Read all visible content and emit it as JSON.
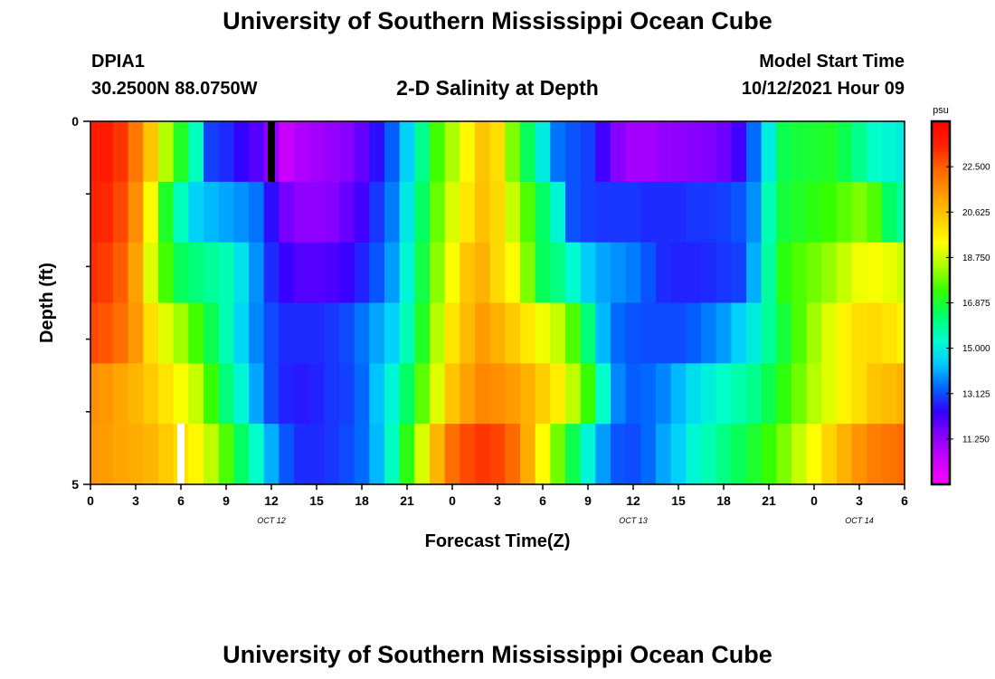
{
  "header": {
    "title": "University of Southern Mississippi Ocean Cube",
    "station_id": "DPIA1",
    "station_coords": "30.2500N  88.0750W",
    "subtitle": "2-D Salinity at Depth",
    "model_start_label": "Model Start Time",
    "model_start_value": "10/12/2021 Hour 09"
  },
  "footer": {
    "title": "University of Southern Mississippi Ocean Cube"
  },
  "chart_data": {
    "type": "heatmap",
    "title": "2-D Salinity at Depth",
    "xlabel": "Forecast Time(Z)",
    "ylabel": "Depth (ft)",
    "x_tick_labels": [
      "0",
      "3",
      "6",
      "9",
      "12",
      "15",
      "18",
      "21",
      "0",
      "3",
      "6",
      "9",
      "12",
      "15",
      "18",
      "21",
      "0",
      "3",
      "6"
    ],
    "x_range_hours": [
      0,
      54
    ],
    "date_labels": [
      {
        "text": "OCT 12",
        "hour": 12
      },
      {
        "text": "OCT 13",
        "hour": 36
      },
      {
        "text": "OCT 14",
        "hour": 51
      }
    ],
    "y_range_ft": [
      0,
      5
    ],
    "y_tick_labels": [
      {
        "depth": 0,
        "text": "0"
      },
      {
        "depth": 5,
        "text": "5"
      }
    ],
    "y_minor_ticks_ft": [
      1,
      2,
      3,
      4
    ],
    "depth_layers_ft": [
      0,
      1,
      2,
      3,
      4,
      5
    ],
    "time_step_hours": 1,
    "colorbar": {
      "unit": "psu",
      "min": 9.375,
      "max": 24.375,
      "tick_values": [
        11.25,
        13.125,
        15.0,
        16.875,
        18.75,
        20.625,
        22.5
      ],
      "tick_labels": [
        "11.250",
        "13.125",
        "15.000",
        "16.875",
        "18.750",
        "20.625",
        "22.500"
      ],
      "colors": [
        "#ff00ff",
        "#cc00ff",
        "#8a00ff",
        "#3300ff",
        "#0066ff",
        "#00ccff",
        "#00ffcc",
        "#00ff66",
        "#33ff00",
        "#aaff00",
        "#ffff00",
        "#ffcc00",
        "#ff9900",
        "#ff6600",
        "#ff2200",
        "#ff0000"
      ]
    },
    "missing_markers": [
      {
        "hour": 12,
        "depth_layer": 0,
        "color": "#000000"
      },
      {
        "hour": 6,
        "depth_layer": 5,
        "color": "#ffffff"
      }
    ],
    "salinity_psu": [
      [
        23.6,
        23.6,
        23.1,
        22.0,
        20.5,
        18.5,
        17.0,
        15.5,
        13.0,
        12.8,
        12.4,
        12.0,
        11.3,
        10.4,
        10.8,
        11.0,
        11.2,
        11.4,
        11.8,
        12.5,
        13.3,
        14.5,
        16.0,
        17.5,
        18.4,
        19.5,
        20.5,
        20.0,
        18.0,
        16.5,
        15.0,
        13.5,
        13.2,
        13.0,
        12.2,
        11.4,
        11.0,
        11.0,
        11.2,
        11.3,
        11.4,
        11.5,
        11.7,
        12.2,
        13.4,
        15.0,
        16.6,
        16.8,
        16.9,
        17.0,
        16.6,
        16.0,
        15.4,
        15.2,
        15.0
      ],
      [
        23.4,
        23.3,
        22.8,
        21.6,
        19.4,
        17.0,
        15.5,
        14.5,
        14.2,
        14.0,
        13.8,
        13.5,
        12.5,
        11.6,
        11.3,
        11.3,
        11.4,
        11.8,
        12.2,
        12.9,
        13.6,
        14.9,
        16.4,
        17.8,
        18.9,
        19.8,
        20.6,
        20.1,
        18.7,
        17.6,
        16.4,
        15.2,
        13.2,
        13.0,
        12.9,
        12.9,
        12.9,
        12.8,
        12.8,
        12.8,
        12.9,
        12.9,
        13.0,
        13.2,
        13.8,
        15.6,
        16.8,
        17.0,
        17.2,
        17.4,
        17.7,
        18.0,
        17.6,
        16.4,
        15.8
      ],
      [
        23.2,
        23.0,
        22.5,
        21.2,
        19.0,
        17.5,
        16.5,
        16.2,
        15.9,
        15.6,
        14.8,
        13.8,
        12.8,
        12.3,
        12.0,
        12.0,
        12.1,
        12.3,
        12.7,
        13.2,
        13.9,
        15.2,
        16.7,
        18.1,
        19.3,
        20.5,
        20.9,
        20.1,
        19.4,
        18.0,
        16.5,
        16.1,
        15.3,
        14.4,
        14.0,
        13.8,
        13.6,
        13.2,
        12.8,
        12.7,
        12.7,
        12.8,
        12.9,
        13.0,
        14.1,
        15.8,
        17.2,
        17.6,
        17.9,
        18.2,
        18.7,
        19.2,
        19.3,
        19.1,
        18.8
      ],
      [
        22.8,
        22.6,
        22.2,
        21.4,
        20.0,
        19.0,
        18.3,
        17.5,
        16.6,
        15.6,
        14.6,
        13.7,
        13.1,
        12.8,
        12.8,
        12.8,
        12.9,
        13.1,
        13.5,
        14.0,
        14.5,
        15.6,
        17.0,
        18.5,
        19.9,
        20.7,
        21.3,
        20.9,
        20.4,
        19.8,
        19.2,
        18.7,
        17.6,
        16.2,
        14.2,
        13.4,
        13.2,
        13.1,
        13.1,
        13.1,
        13.3,
        13.6,
        13.9,
        14.5,
        15.0,
        15.9,
        16.8,
        17.6,
        18.3,
        19.0,
        19.6,
        20.0,
        20.1,
        19.9,
        19.6
      ],
      [
        21.6,
        21.4,
        21.1,
        20.8,
        20.4,
        19.9,
        19.3,
        18.7,
        17.4,
        16.2,
        15.2,
        14.0,
        13.1,
        12.7,
        12.6,
        12.7,
        12.9,
        13.0,
        13.4,
        14.3,
        15.2,
        16.4,
        17.7,
        19.0,
        20.5,
        21.2,
        21.7,
        21.6,
        21.3,
        20.9,
        20.3,
        19.7,
        18.6,
        17.4,
        15.4,
        13.7,
        13.3,
        13.4,
        13.7,
        14.2,
        14.7,
        15.1,
        15.4,
        15.7,
        16.0,
        16.6,
        17.3,
        17.9,
        18.5,
        19.0,
        19.6,
        20.0,
        20.5,
        20.7,
        20.9
      ],
      [
        21.4,
        21.3,
        21.1,
        21.0,
        20.8,
        20.4,
        20.0,
        19.5,
        18.6,
        17.6,
        16.4,
        15.4,
        14.1,
        13.2,
        12.8,
        12.8,
        12.9,
        13.1,
        13.4,
        14.2,
        15.5,
        17.2,
        18.9,
        20.8,
        22.2,
        22.8,
        23.1,
        22.9,
        22.3,
        21.0,
        19.4,
        17.9,
        16.6,
        15.2,
        13.9,
        13.2,
        13.1,
        13.4,
        14.0,
        14.5,
        15.2,
        15.6,
        16.1,
        16.5,
        16.9,
        17.4,
        18.0,
        18.7,
        19.4,
        20.2,
        20.9,
        21.5,
        21.9,
        22.1,
        22.3
      ]
    ]
  }
}
